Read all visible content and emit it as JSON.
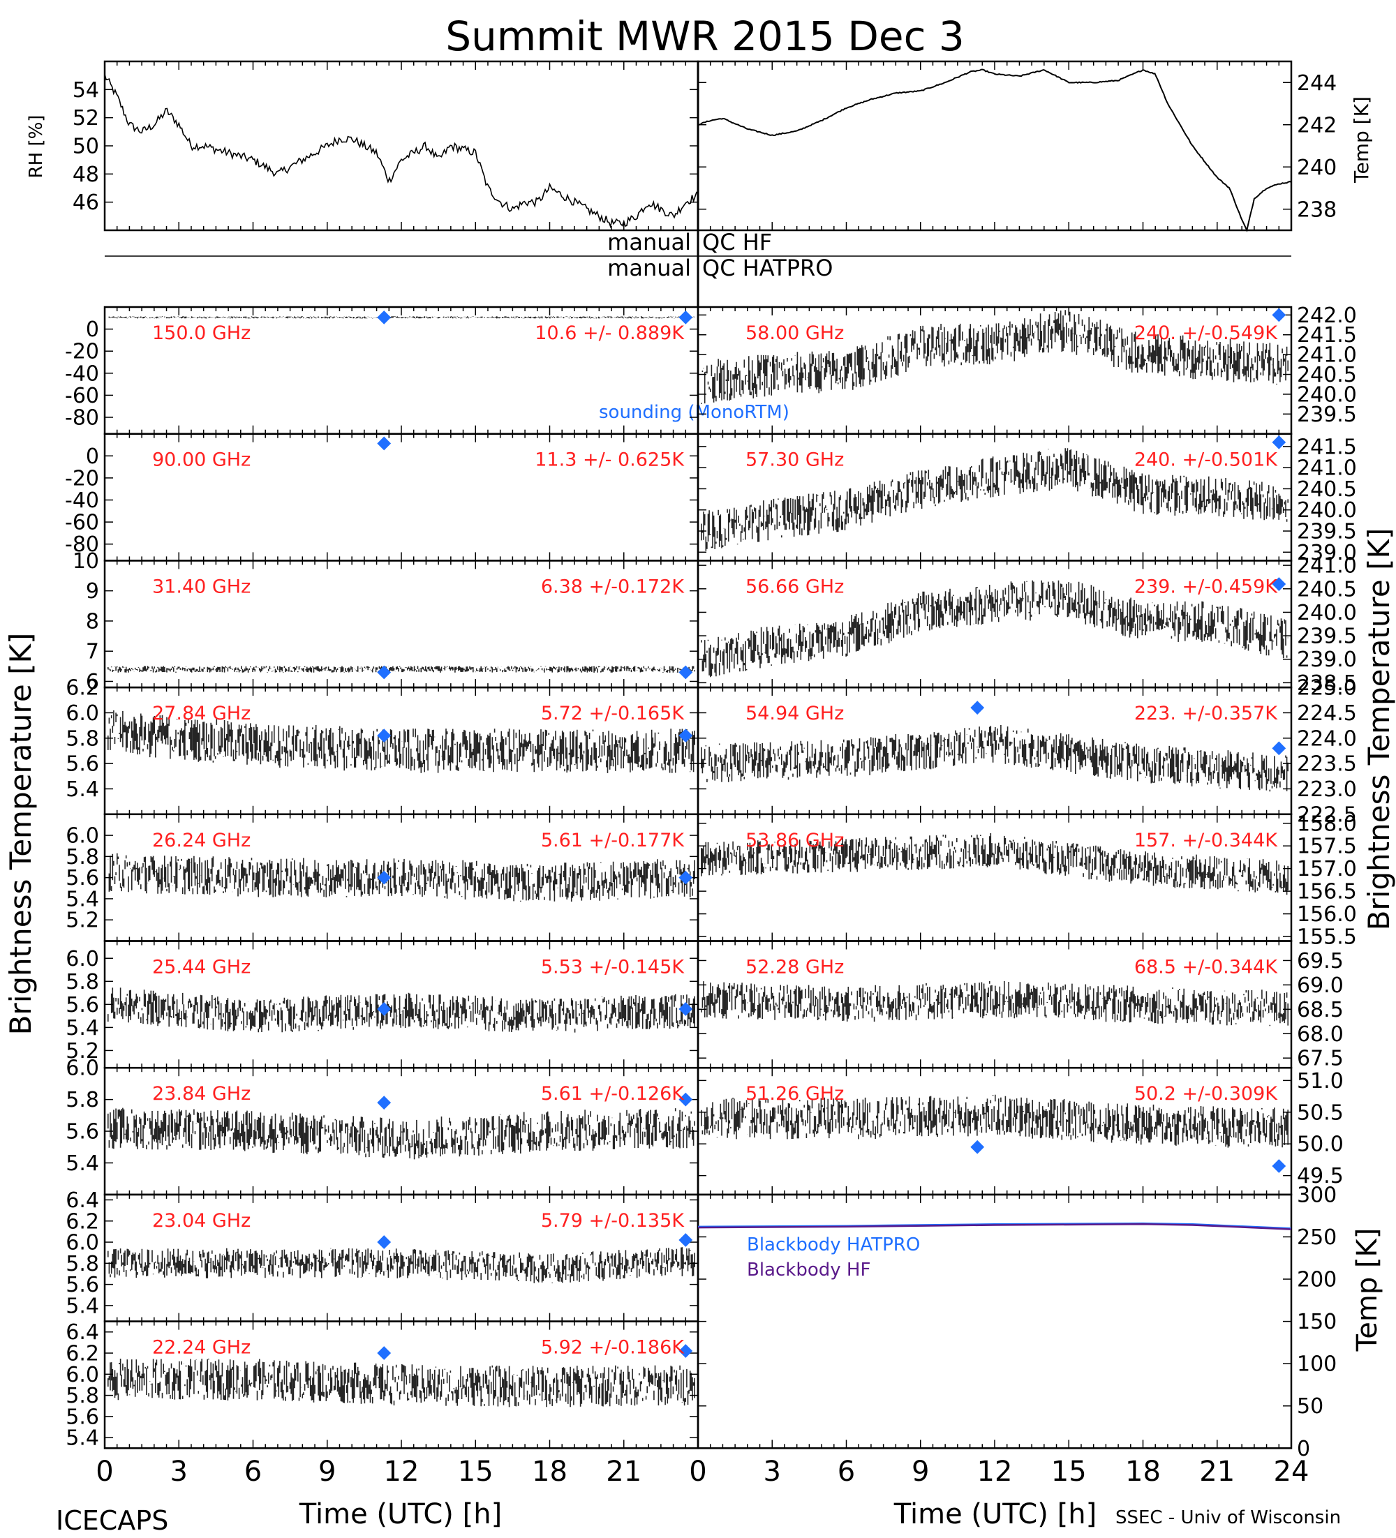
{
  "title": "Summit MWR 2015 Dec  3",
  "footer": {
    "left": "ICECAPS",
    "right": "SSEC - Univ of Wisconsin"
  },
  "axis_labels": {
    "x_label": "Time (UTC) [h]",
    "y_left": "Brightness Temperature [K]",
    "y_right": "Brightness Temperature [K]",
    "rh": "RH [%]",
    "temp": "Temp [K]",
    "bb_temp": "Temp [K]"
  },
  "qc_labels": {
    "hf_left": "manual",
    "hf_right": "QC HF",
    "hatpro_left": "manual",
    "hatpro_right": "QC HATPRO"
  },
  "legend": {
    "sounding": "sounding (MonoRTM)",
    "bb_hatpro": "Blackbody HATPRO",
    "bb_hf": "Blackbody HF"
  },
  "colors": {
    "data": "#000000",
    "label": "#ff2020",
    "marker": "#1f6fff",
    "hatpro": "#1f6fff",
    "hf": "#5a1a8a"
  },
  "chart_data": [
    {
      "type": "line",
      "panel": "rh",
      "ylabel": "RH [%]",
      "xlim": [
        0,
        24
      ],
      "ylim": [
        44,
        56
      ],
      "yticks": [
        46,
        48,
        50,
        52,
        54
      ],
      "x": [
        0,
        0.5,
        1,
        1.5,
        2,
        2.5,
        3,
        3.5,
        4,
        5,
        6,
        6.5,
        7,
        7.5,
        8,
        9,
        9.5,
        10,
        11,
        11.5,
        12,
        12.5,
        13,
        13.5,
        14,
        15,
        15.5,
        16,
        16.5,
        17,
        17.5,
        18,
        18.5,
        19,
        20,
        20.5,
        21,
        21.5,
        22,
        22.5,
        23,
        23.5,
        24
      ],
      "values": [
        55,
        53.5,
        51.5,
        51,
        51.5,
        52.5,
        51.5,
        50,
        50,
        49.5,
        49,
        48.5,
        48,
        48.5,
        49,
        50,
        50.5,
        50.5,
        49.5,
        47.5,
        49,
        49.5,
        50,
        49,
        50,
        49.5,
        47,
        46,
        45.5,
        46,
        46,
        47,
        46.5,
        46,
        45,
        44.5,
        44.5,
        45,
        46,
        45.5,
        45,
        46,
        46.5
      ]
    },
    {
      "type": "line",
      "panel": "temp",
      "ylabel": "Temp [K]",
      "xlim": [
        0,
        24
      ],
      "ylim": [
        237,
        245
      ],
      "yticks": [
        238,
        240,
        242,
        244
      ],
      "x": [
        0,
        0.5,
        1,
        2,
        3,
        4,
        5,
        6,
        7,
        8,
        9,
        10,
        11,
        11.5,
        12,
        13,
        14,
        15,
        16,
        17,
        18,
        18.5,
        19,
        20,
        21,
        21.5,
        22,
        22.2,
        22.5,
        23,
        23.5,
        24
      ],
      "values": [
        242,
        242.2,
        242.3,
        241.8,
        241.5,
        241.7,
        242.2,
        242.8,
        243.2,
        243.5,
        243.6,
        244,
        244.5,
        244.6,
        244.4,
        244.3,
        244.6,
        244,
        244.0,
        244.1,
        244.6,
        244.4,
        243,
        241,
        239.5,
        239,
        237.5,
        237,
        238.5,
        239,
        239.2,
        239.3
      ]
    },
    {
      "type": "scatter",
      "side": "left",
      "row": 0,
      "label": "150.0 GHz",
      "stat": "10.6 +/- 0.889K",
      "xlim": [
        0,
        24
      ],
      "ylim": [
        -95,
        20
      ],
      "yticks": [
        0,
        -20,
        -40,
        -60,
        -80
      ],
      "ytick_labels": [
        "0",
        "-20",
        "-40",
        "-60",
        "-80"
      ],
      "level": [
        [
          0,
          10.6
        ],
        [
          24,
          10.6
        ]
      ],
      "noise": 0.9,
      "sounding": [
        [
          11.3,
          10.6
        ],
        [
          23.5,
          10.6
        ]
      ]
    },
    {
      "type": "scatter",
      "side": "left",
      "row": 1,
      "label": "90.00 GHz",
      "stat": "11.3 +/- 0.625K",
      "xlim": [
        0,
        24
      ],
      "ylim": [
        -95,
        20
      ],
      "yticks": [
        0,
        -20,
        -40,
        -60,
        -80
      ],
      "ytick_labels": [
        "0",
        "-20",
        "-40",
        "-60",
        "-80"
      ],
      "level": [],
      "noise": 0,
      "sounding": [
        [
          11.3,
          11.3
        ]
      ]
    },
    {
      "type": "scatter",
      "side": "left",
      "row": 2,
      "label": "31.40 GHz",
      "stat": "6.38 +/-0.172K",
      "xlim": [
        0,
        24
      ],
      "ylim": [
        5.8,
        10
      ],
      "yticks": [
        6,
        7,
        8,
        9,
        10
      ],
      "ytick_labels": [
        "6",
        "7",
        "8",
        "9",
        "10"
      ],
      "level": [
        [
          0,
          6.4
        ],
        [
          24,
          6.4
        ]
      ],
      "noise": 0.1,
      "sounding": [
        [
          11.3,
          6.3
        ],
        [
          23.5,
          6.3
        ]
      ]
    },
    {
      "type": "scatter",
      "side": "left",
      "row": 3,
      "label": "27.84 GHz",
      "stat": "5.72 +/-0.165K",
      "xlim": [
        0,
        24
      ],
      "ylim": [
        5.2,
        6.2
      ],
      "yticks": [
        5.4,
        5.6,
        5.8,
        6.0,
        6.2
      ],
      "ytick_labels": [
        "5.4",
        "5.6",
        "5.8",
        "6.0",
        "6.2"
      ],
      "level": [
        [
          0,
          5.85
        ],
        [
          6,
          5.75
        ],
        [
          12,
          5.7
        ],
        [
          18,
          5.7
        ],
        [
          24,
          5.7
        ]
      ],
      "noise": 0.16,
      "sounding": [
        [
          11.3,
          5.82
        ],
        [
          23.5,
          5.82
        ]
      ]
    },
    {
      "type": "scatter",
      "side": "left",
      "row": 4,
      "label": "26.24 GHz",
      "stat": "5.61 +/-0.177K",
      "xlim": [
        0,
        24
      ],
      "ylim": [
        5.0,
        6.2
      ],
      "yticks": [
        5.2,
        5.4,
        5.6,
        5.8,
        6.0
      ],
      "ytick_labels": [
        "5.2",
        "5.4",
        "5.6",
        "5.8",
        "6.0"
      ],
      "level": [
        [
          0,
          5.65
        ],
        [
          6,
          5.6
        ],
        [
          12,
          5.6
        ],
        [
          18,
          5.55
        ],
        [
          24,
          5.6
        ]
      ],
      "noise": 0.17,
      "sounding": [
        [
          11.3,
          5.6
        ],
        [
          23.5,
          5.6
        ]
      ]
    },
    {
      "type": "scatter",
      "side": "left",
      "row": 5,
      "label": "25.44 GHz",
      "stat": "5.53 +/-0.145K",
      "xlim": [
        0,
        24
      ],
      "ylim": [
        5.05,
        6.15
      ],
      "yticks": [
        5.2,
        5.4,
        5.6,
        5.8,
        6.0
      ],
      "ytick_labels": [
        "5.2",
        "5.4",
        "5.6",
        "5.8",
        "6.0"
      ],
      "level": [
        [
          0,
          5.6
        ],
        [
          6,
          5.5
        ],
        [
          12,
          5.55
        ],
        [
          18,
          5.5
        ],
        [
          24,
          5.55
        ]
      ],
      "noise": 0.14,
      "sounding": [
        [
          11.3,
          5.56
        ],
        [
          23.5,
          5.56
        ]
      ]
    },
    {
      "type": "scatter",
      "side": "left",
      "row": 6,
      "label": "23.84 GHz",
      "stat": "5.61 +/-0.126K",
      "xlim": [
        0,
        24
      ],
      "ylim": [
        5.2,
        6.0
      ],
      "yticks": [
        5.4,
        5.6,
        5.8,
        6.0
      ],
      "ytick_labels": [
        "5.4",
        "5.6",
        "5.8",
        "6.0"
      ],
      "level": [
        [
          0,
          5.62
        ],
        [
          6,
          5.6
        ],
        [
          12,
          5.55
        ],
        [
          18,
          5.6
        ],
        [
          24,
          5.62
        ]
      ],
      "noise": 0.12,
      "sounding": [
        [
          11.3,
          5.78
        ],
        [
          23.5,
          5.8
        ]
      ]
    },
    {
      "type": "scatter",
      "side": "left",
      "row": 7,
      "label": "23.04 GHz",
      "stat": "5.79 +/-0.135K",
      "xlim": [
        0,
        24
      ],
      "ylim": [
        5.25,
        6.45
      ],
      "yticks": [
        5.4,
        5.6,
        5.8,
        6.0,
        6.2,
        6.4
      ],
      "ytick_labels": [
        "5.4",
        "5.6",
        "5.8",
        "6.0",
        "6.2",
        "6.4"
      ],
      "level": [
        [
          0,
          5.8
        ],
        [
          6,
          5.8
        ],
        [
          12,
          5.8
        ],
        [
          18,
          5.75
        ],
        [
          24,
          5.82
        ]
      ],
      "noise": 0.13,
      "sounding": [
        [
          11.3,
          6.0
        ],
        [
          23.5,
          6.02
        ]
      ]
    },
    {
      "type": "scatter",
      "side": "left",
      "row": 8,
      "label": "22.24 GHz",
      "stat": "5.92 +/-0.186K",
      "xlim": [
        0,
        24
      ],
      "ylim": [
        5.3,
        6.5
      ],
      "yticks": [
        5.4,
        5.6,
        5.8,
        6.0,
        6.2,
        6.4
      ],
      "ytick_labels": [
        "5.4",
        "5.6",
        "5.8",
        "6.0",
        "6.2",
        "6.4"
      ],
      "level": [
        [
          0,
          5.95
        ],
        [
          6,
          5.95
        ],
        [
          12,
          5.9
        ],
        [
          18,
          5.88
        ],
        [
          24,
          5.9
        ]
      ],
      "noise": 0.18,
      "sounding": [
        [
          11.3,
          6.2
        ],
        [
          23.5,
          6.22
        ]
      ]
    },
    {
      "type": "scatter",
      "side": "right",
      "row": 0,
      "label": "58.00 GHz",
      "stat": "240. +/-0.549K",
      "xlim": [
        0,
        24
      ],
      "ylim": [
        239.0,
        242.2
      ],
      "yticks": [
        239.5,
        240.0,
        240.5,
        241.0,
        241.5,
        242.0
      ],
      "ytick_labels": [
        "239.5",
        "240.0",
        "240.5",
        "241.0",
        "241.5",
        "242.0"
      ],
      "level": [
        [
          0,
          240.3
        ],
        [
          3,
          240.5
        ],
        [
          6,
          240.6
        ],
        [
          9,
          241.2
        ],
        [
          12,
          241.3
        ],
        [
          15,
          241.6
        ],
        [
          18,
          241.0
        ],
        [
          21,
          240.9
        ],
        [
          24,
          240.7
        ]
      ],
      "noise": 0.5,
      "sounding": [
        [
          23.5,
          242.0
        ]
      ]
    },
    {
      "type": "scatter",
      "side": "right",
      "row": 1,
      "label": "57.30 GHz",
      "stat": "240. +/-0.501K",
      "xlim": [
        0,
        24
      ],
      "ylim": [
        238.8,
        241.8
      ],
      "yticks": [
        239.0,
        239.5,
        240.0,
        240.5,
        241.0,
        241.5
      ],
      "ytick_labels": [
        "239.0",
        "239.5",
        "240.0",
        "240.5",
        "241.0",
        "241.5"
      ],
      "level": [
        [
          0,
          239.5
        ],
        [
          3,
          239.8
        ],
        [
          6,
          240.0
        ],
        [
          9,
          240.5
        ],
        [
          12,
          240.8
        ],
        [
          15,
          241.0
        ],
        [
          18,
          240.4
        ],
        [
          21,
          240.3
        ],
        [
          24,
          240.2
        ]
      ],
      "noise": 0.45,
      "sounding": [
        [
          23.5,
          241.6
        ]
      ]
    },
    {
      "type": "scatter",
      "side": "right",
      "row": 2,
      "label": "56.66 GHz",
      "stat": "239. +/-0.459K",
      "xlim": [
        0,
        24
      ],
      "ylim": [
        238.4,
        241.1
      ],
      "yticks": [
        238.5,
        239.0,
        239.5,
        240.0,
        240.5,
        241.0
      ],
      "ytick_labels": [
        "238.5",
        "239.0",
        "239.5",
        "240.0",
        "240.5",
        "241.0"
      ],
      "level": [
        [
          0,
          239.0
        ],
        [
          3,
          239.3
        ],
        [
          6,
          239.5
        ],
        [
          9,
          240.0
        ],
        [
          12,
          240.2
        ],
        [
          15,
          240.3
        ],
        [
          18,
          239.8
        ],
        [
          21,
          239.8
        ],
        [
          24,
          239.4
        ]
      ],
      "noise": 0.4,
      "sounding": [
        [
          23.5,
          240.6
        ]
      ]
    },
    {
      "type": "scatter",
      "side": "right",
      "row": 3,
      "label": "54.94 GHz",
      "stat": "223. +/-0.357K",
      "xlim": [
        0,
        24
      ],
      "ylim": [
        222.5,
        225.0
      ],
      "yticks": [
        222.5,
        223.0,
        223.5,
        224.0,
        224.5,
        225.0
      ],
      "ytick_labels": [
        "222.5",
        "223.0",
        "223.5",
        "224.0",
        "224.5",
        "225.0"
      ],
      "level": [
        [
          0,
          223.5
        ],
        [
          6,
          223.6
        ],
        [
          12,
          223.9
        ],
        [
          18,
          223.5
        ],
        [
          24,
          223.3
        ]
      ],
      "noise": 0.35,
      "sounding": [
        [
          11.3,
          224.6
        ],
        [
          23.5,
          223.8
        ]
      ]
    },
    {
      "type": "scatter",
      "side": "right",
      "row": 4,
      "label": "53.86 GHz",
      "stat": "157. +/-0.344K",
      "xlim": [
        0,
        24
      ],
      "ylim": [
        155.4,
        158.2
      ],
      "yticks": [
        155.5,
        156.0,
        156.5,
        157.0,
        157.5,
        158.0
      ],
      "ytick_labels": [
        "155.5",
        "156.0",
        "156.5",
        "157.0",
        "157.5",
        "158.0"
      ],
      "level": [
        [
          0,
          157.2
        ],
        [
          6,
          157.3
        ],
        [
          12,
          157.4
        ],
        [
          18,
          157.0
        ],
        [
          24,
          156.8
        ]
      ],
      "noise": 0.35,
      "sounding": []
    },
    {
      "type": "scatter",
      "side": "right",
      "row": 5,
      "label": "52.28 GHz",
      "stat": "68.5 +/-0.344K",
      "xlim": [
        0,
        24
      ],
      "ylim": [
        67.3,
        69.9
      ],
      "yticks": [
        67.5,
        68.0,
        68.5,
        69.0,
        69.5
      ],
      "ytick_labels": [
        "67.5",
        "68.0",
        "68.5",
        "69.0",
        "69.5"
      ],
      "level": [
        [
          0,
          68.7
        ],
        [
          6,
          68.6
        ],
        [
          12,
          68.7
        ],
        [
          18,
          68.6
        ],
        [
          24,
          68.5
        ]
      ],
      "noise": 0.35,
      "sounding": []
    },
    {
      "type": "scatter",
      "side": "right",
      "row": 6,
      "label": "51.26 GHz",
      "stat": "50.2 +/-0.309K",
      "xlim": [
        0,
        24
      ],
      "ylim": [
        49.2,
        51.2
      ],
      "yticks": [
        49.5,
        50.0,
        50.5,
        51.0
      ],
      "ytick_labels": [
        "49.5",
        "50.0",
        "50.5",
        "51.0"
      ],
      "level": [
        [
          0,
          50.4
        ],
        [
          6,
          50.4
        ],
        [
          12,
          50.45
        ],
        [
          18,
          50.3
        ],
        [
          24,
          50.25
        ]
      ],
      "noise": 0.3,
      "sounding": [
        [
          11.3,
          49.95
        ],
        [
          23.5,
          49.65
        ]
      ]
    },
    {
      "type": "line",
      "panel": "blackbody",
      "ylabel": "Temp [K]",
      "xlim": [
        0,
        24
      ],
      "ylim": [
        0,
        300
      ],
      "yticks": [
        0,
        50,
        100,
        150,
        200,
        250,
        300
      ],
      "series": [
        {
          "name": "Blackbody HATPRO",
          "x": [
            0,
            6,
            12,
            18,
            20,
            24
          ],
          "values": [
            262,
            263,
            265,
            266,
            265,
            260
          ]
        },
        {
          "name": "Blackbody HF",
          "x": [
            0,
            6,
            12,
            18,
            20,
            24
          ],
          "values": [
            261,
            262,
            264,
            265,
            264,
            259
          ]
        }
      ]
    }
  ],
  "x_ticks": [
    "0",
    "3",
    "6",
    "9",
    "12",
    "15",
    "18",
    "21",
    "0",
    "3",
    "6",
    "9",
    "12",
    "15",
    "18",
    "21",
    "24"
  ]
}
